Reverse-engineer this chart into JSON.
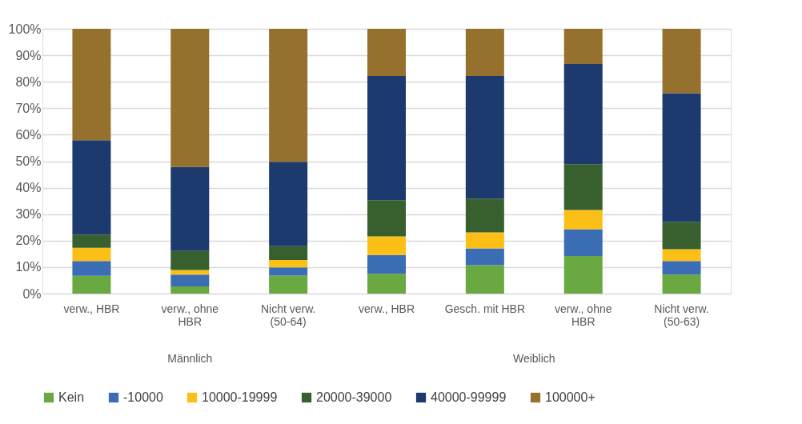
{
  "chart_data": {
    "type": "bar",
    "stacked": true,
    "categories": [
      "verw., HBR",
      "verw., ohne HBR",
      "Nicht verw. (50-64)",
      "verw., HBR",
      "Gesch. mit HBR",
      "verw., ohne HBR",
      "Nicht verw. (50-63)"
    ],
    "annotations": [
      "Männlich",
      "Weiblich"
    ],
    "series": [
      {
        "name": "Kein",
        "color": "#6aa842",
        "values": [
          6.7,
          2.7,
          6.8,
          7.5,
          10.7,
          14.2,
          7.2
        ]
      },
      {
        "name": "-10000",
        "color": "#3b6db5",
        "values": [
          5.6,
          4.5,
          3.1,
          7.1,
          6.4,
          10.1,
          5.1
        ]
      },
      {
        "name": "10000-19999",
        "color": "#fcbf15",
        "values": [
          5.0,
          1.7,
          2.8,
          7.0,
          6.0,
          7.3,
          4.5
        ]
      },
      {
        "name": "20000-39000",
        "color": "#37602e",
        "values": [
          5.0,
          7.2,
          5.2,
          13.7,
          12.8,
          17.3,
          10.3
        ]
      },
      {
        "name": "40000-99999",
        "color": "#1c3a6e",
        "values": [
          35.6,
          31.8,
          31.9,
          46.9,
          46.3,
          37.8,
          48.6
        ]
      },
      {
        "name": "100000+",
        "color": "#95712d",
        "values": [
          42.1,
          52.1,
          50.2,
          17.8,
          17.8,
          13.3,
          24.3
        ]
      }
    ],
    "ylim": [
      0,
      100
    ],
    "yticks": [
      {
        "value": 0,
        "label": "0%"
      },
      {
        "value": 10,
        "label": "10%"
      },
      {
        "value": 20,
        "label": "20%"
      },
      {
        "value": 30,
        "label": "30%"
      },
      {
        "value": 40,
        "label": "40%"
      },
      {
        "value": 50,
        "label": "50%"
      },
      {
        "value": 60,
        "label": "60%"
      },
      {
        "value": 70,
        "label": "70%"
      },
      {
        "value": 80,
        "label": "80%"
      },
      {
        "value": 90,
        "label": "90%"
      },
      {
        "value": 100,
        "label": "100%"
      }
    ],
    "grid": "y",
    "legend": "bottom"
  }
}
